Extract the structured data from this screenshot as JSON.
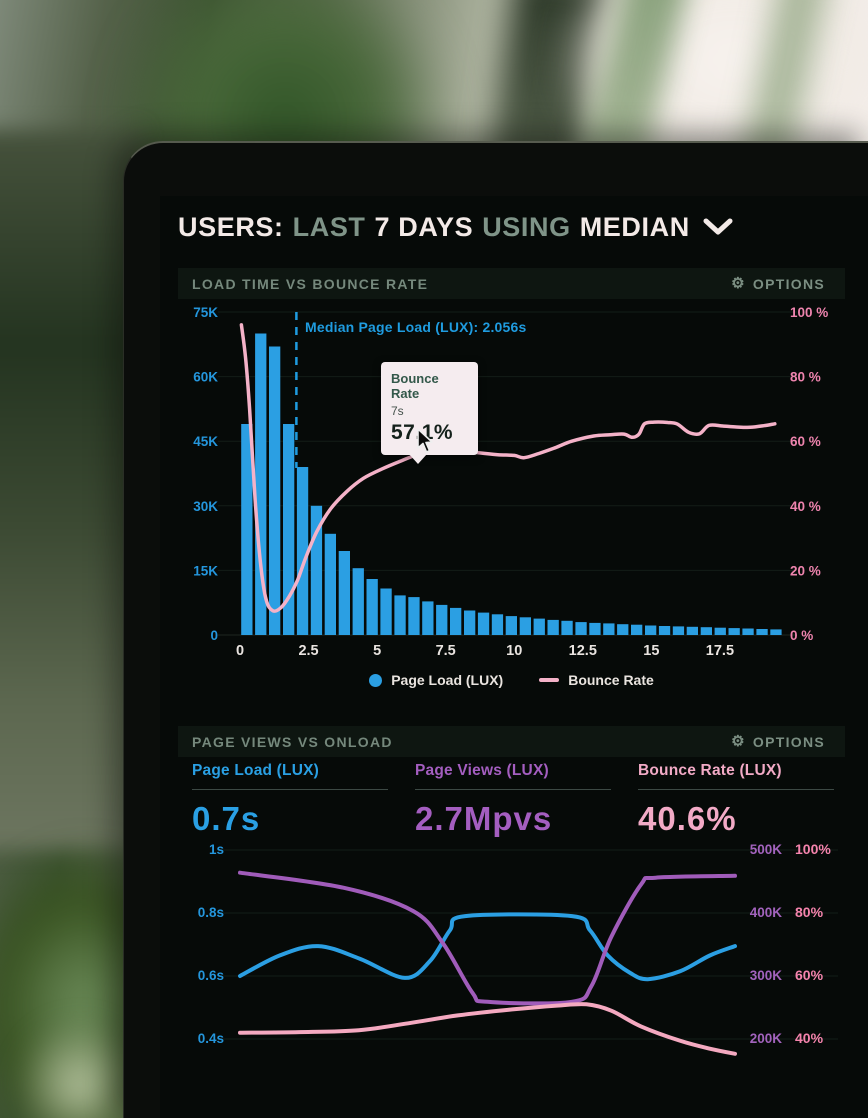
{
  "header": {
    "word1": "USERS:",
    "word2": "LAST",
    "word3": "7 DAYS",
    "word4": "USING",
    "word5": "MEDIAN"
  },
  "cards": [
    {
      "title": "LOAD TIME VS BOUNCE RATE",
      "options": "OPTIONS"
    },
    {
      "title": "PAGE VIEWS VS ONLOAD",
      "options": "OPTIONS"
    }
  ],
  "metrics": [
    {
      "label": "Page Load (LUX)",
      "value": "0.7s"
    },
    {
      "label": "Page Views (LUX)",
      "value": "2.7Mpvs"
    },
    {
      "label": "Bounce Rate (LUX)",
      "value": "40.6%"
    }
  ],
  "colors": {
    "bar_blue": "#2b9fe3",
    "line_pink": "#f4b2c8",
    "axis_blue": "#2496dc",
    "axis_pink": "#ee84ae",
    "purple": "#a05cba",
    "muted_green": "#75887c",
    "title_white": "#f3eae7",
    "grid": "#131d17"
  },
  "chart_data": [
    {
      "type": "bar",
      "title": "LOAD TIME VS BOUNCE RATE",
      "x_range": [
        0,
        19.8
      ],
      "x_tick_values": [
        0,
        2.5,
        5,
        7.5,
        10,
        12.5,
        15,
        17.5
      ],
      "x_tick_labels": [
        "0",
        "2.5",
        "5",
        "7.5",
        "10",
        "12.5",
        "15",
        "17.5"
      ],
      "left_axis": {
        "range": [
          0,
          75000
        ],
        "tick_values": [
          75000,
          60000,
          45000,
          30000,
          15000,
          0
        ],
        "tick_labels": [
          "75K",
          "60K",
          "45K",
          "30K",
          "15K",
          "0"
        ]
      },
      "right_axis": {
        "range": [
          0,
          100
        ],
        "tick_values": [
          100,
          80,
          60,
          40,
          20,
          0
        ],
        "tick_labels": [
          "100 %",
          "80 %",
          "60 %",
          "40 %",
          "20 %",
          "0 %"
        ]
      },
      "bars": {
        "name": "Page Load (LUX)",
        "color": "#2b9fe3",
        "bin_width": 0.5,
        "values": [
          49000,
          70000,
          67000,
          49000,
          39000,
          30000,
          23500,
          19500,
          15500,
          13000,
          10800,
          9200,
          8800,
          7800,
          7000,
          6300,
          5700,
          5200,
          4800,
          4400,
          4100,
          3800,
          3500,
          3300,
          3000,
          2800,
          2700,
          2500,
          2400,
          2200,
          2100,
          2000,
          1900,
          1800,
          1700,
          1600,
          1500,
          1400,
          1300
        ]
      },
      "line": {
        "name": "Bounce Rate",
        "color": "#f4b2c8",
        "points": [
          [
            0.05,
            96
          ],
          [
            0.2,
            86
          ],
          [
            0.35,
            70
          ],
          [
            0.55,
            42
          ],
          [
            0.75,
            22
          ],
          [
            0.95,
            11
          ],
          [
            1.2,
            7.5
          ],
          [
            1.5,
            8.5
          ],
          [
            1.8,
            12
          ],
          [
            2.1,
            17
          ],
          [
            2.4,
            24
          ],
          [
            2.8,
            32
          ],
          [
            3.3,
            39
          ],
          [
            3.9,
            44.5
          ],
          [
            4.5,
            48.5
          ],
          [
            5.2,
            51.5
          ],
          [
            5.9,
            54
          ],
          [
            6.5,
            56
          ],
          [
            7.0,
            57.1
          ],
          [
            7.6,
            56.8
          ],
          [
            8.1,
            57
          ],
          [
            8.7,
            56.4
          ],
          [
            9.4,
            55.8
          ],
          [
            10.0,
            55.6
          ],
          [
            10.35,
            54.9
          ],
          [
            10.9,
            56.2
          ],
          [
            11.5,
            58
          ],
          [
            12.1,
            60
          ],
          [
            12.9,
            61.6
          ],
          [
            13.5,
            62
          ],
          [
            14.0,
            62.2
          ],
          [
            14.3,
            61.2
          ],
          [
            14.55,
            62.2
          ],
          [
            14.75,
            65.4
          ],
          [
            15.1,
            65.9
          ],
          [
            15.6,
            65.8
          ],
          [
            15.95,
            65.3
          ],
          [
            16.35,
            62.8
          ],
          [
            16.75,
            62.3
          ],
          [
            17.1,
            64.9
          ],
          [
            17.6,
            64.7
          ],
          [
            18.1,
            64.4
          ],
          [
            18.6,
            64.3
          ],
          [
            19.1,
            64.8
          ],
          [
            19.5,
            65.4
          ]
        ]
      },
      "median": {
        "label": "Median Page Load (LUX): 2.056s",
        "x": 2.056
      },
      "tooltip": {
        "title": "Bounce Rate",
        "x_label": "7s",
        "value": "57.1%"
      },
      "legend": [
        {
          "label": "Page Load (LUX)"
        },
        {
          "label": "Bounce Rate"
        }
      ],
      "legend_position": "bottom-center",
      "grid": true
    },
    {
      "type": "line",
      "title": "PAGE VIEWS VS ONLOAD",
      "left_axis": {
        "range": [
          0.4,
          1.0
        ],
        "tick_values": [
          1.0,
          0.8,
          0.6,
          0.4
        ],
        "tick_labels": [
          "1s",
          "0.8s",
          "0.6s",
          "0.4s"
        ]
      },
      "right_axis_views": {
        "range": [
          200,
          500
        ],
        "tick_values": [
          500,
          400,
          300,
          200
        ],
        "tick_labels": [
          "500K",
          "400K",
          "300K",
          "200K"
        ]
      },
      "right_axis_bounce": {
        "range": [
          40,
          100
        ],
        "tick_values": [
          100,
          80,
          60,
          40
        ],
        "tick_labels": [
          "100%",
          "80%",
          "60%",
          "40%"
        ]
      },
      "series": [
        {
          "name": "Page Load (LUX)",
          "axis": "seconds",
          "color": "#2b9fe3",
          "points": [
            [
              0,
              0.6
            ],
            [
              0.08,
              0.665
            ],
            [
              0.158,
              0.695
            ],
            [
              0.242,
              0.655
            ],
            [
              0.333,
              0.594
            ],
            [
              0.384,
              0.648
            ],
            [
              0.424,
              0.745
            ],
            [
              0.455,
              0.79
            ],
            [
              0.671,
              0.79
            ],
            [
              0.707,
              0.745
            ],
            [
              0.743,
              0.665
            ],
            [
              0.788,
              0.61
            ],
            [
              0.824,
              0.59
            ],
            [
              0.889,
              0.615
            ],
            [
              0.949,
              0.665
            ],
            [
              1,
              0.695
            ]
          ]
        },
        {
          "name": "Page Views (LUX)",
          "axis": "views",
          "color": "#a05cba",
          "points": [
            [
              0,
              464
            ],
            [
              0.21,
              440
            ],
            [
              0.35,
              403
            ],
            [
              0.41,
              352
            ],
            [
              0.47,
              273
            ],
            [
              0.5,
              259
            ],
            [
              0.67,
              259
            ],
            [
              0.71,
              284
            ],
            [
              0.75,
              362
            ],
            [
              0.81,
              445
            ],
            [
              0.84,
              456
            ],
            [
              1,
              459
            ]
          ]
        },
        {
          "name": "Bounce Rate (LUX)",
          "axis": "bounce",
          "color": "#f4a9c0",
          "points": [
            [
              0,
              42
            ],
            [
              0.12,
              42.2
            ],
            [
              0.24,
              42.8
            ],
            [
              0.34,
              45
            ],
            [
              0.44,
              47.5
            ],
            [
              0.55,
              49.4
            ],
            [
              0.64,
              50.6
            ],
            [
              0.7,
              51
            ],
            [
              0.75,
              49
            ],
            [
              0.81,
              44
            ],
            [
              0.89,
              39.4
            ],
            [
              0.95,
              36.9
            ],
            [
              1,
              35.3
            ]
          ]
        }
      ],
      "grid": true
    }
  ]
}
